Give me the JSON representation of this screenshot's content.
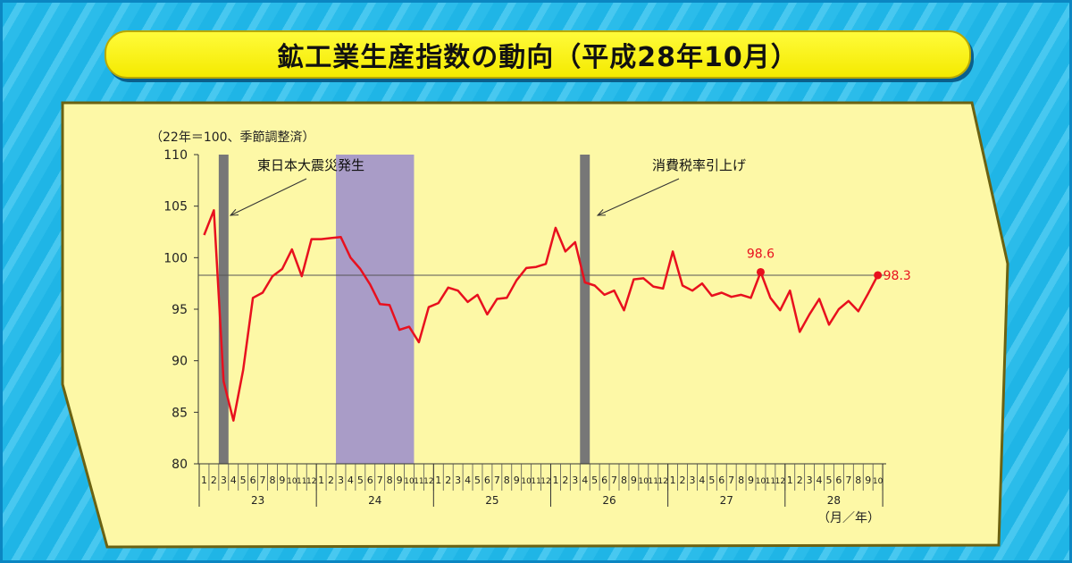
{
  "title": "鉱工業生産指数の動向（平成28年10月）",
  "chart_data": {
    "type": "line",
    "ylabel": "（22年＝100、季節調整済）",
    "xunit": "（月／年）",
    "ylim": [
      80,
      110
    ],
    "yticks": [
      80,
      85,
      90,
      95,
      100,
      105,
      110
    ],
    "reference_line": 98.3,
    "months": [
      "1",
      "2",
      "3",
      "4",
      "5",
      "6",
      "7",
      "8",
      "9",
      "10",
      "11",
      "12",
      "1",
      "2",
      "3",
      "4",
      "5",
      "6",
      "7",
      "8",
      "9",
      "10",
      "11",
      "12",
      "1",
      "2",
      "3",
      "4",
      "5",
      "6",
      "7",
      "8",
      "9",
      "10",
      "11",
      "12",
      "1",
      "2",
      "3",
      "4",
      "5",
      "6",
      "7",
      "8",
      "9",
      "10",
      "11",
      "12",
      "1",
      "2",
      "3",
      "4",
      "5",
      "6",
      "7",
      "8",
      "9",
      "10",
      "11",
      "12",
      "1",
      "2",
      "3",
      "4",
      "5",
      "6",
      "7",
      "8",
      "9",
      "10"
    ],
    "years": [
      {
        "label": "23",
        "start": 0,
        "count": 12
      },
      {
        "label": "24",
        "start": 12,
        "count": 12
      },
      {
        "label": "25",
        "start": 24,
        "count": 12
      },
      {
        "label": "26",
        "start": 36,
        "count": 12
      },
      {
        "label": "27",
        "start": 48,
        "count": 12
      },
      {
        "label": "28",
        "start": 60,
        "count": 10
      }
    ],
    "series": [
      {
        "color": "#e8101e",
        "values": [
          102.2,
          104.6,
          88.0,
          84.2,
          89.1,
          96.1,
          96.6,
          98.2,
          98.9,
          100.8,
          98.2,
          101.8,
          101.8,
          101.9,
          102.0,
          100.0,
          98.9,
          97.4,
          95.5,
          95.4,
          93.0,
          93.3,
          91.8,
          95.2,
          95.6,
          97.1,
          96.8,
          95.7,
          96.4,
          94.5,
          96.0,
          96.1,
          97.8,
          99.0,
          99.1,
          99.4,
          102.9,
          100.6,
          101.5,
          97.6,
          97.3,
          96.4,
          96.8,
          94.9,
          97.9,
          98.0,
          97.2,
          97.0,
          100.6,
          97.3,
          96.8,
          97.5,
          96.3,
          96.6,
          96.2,
          96.4,
          96.1,
          98.6,
          96.1,
          94.9,
          96.8,
          92.8,
          94.5,
          96.0,
          93.5,
          95.0,
          95.8,
          94.8,
          96.5,
          98.3
        ]
      }
    ],
    "callouts": [
      {
        "index": 57,
        "label": "98.6"
      },
      {
        "index": 69,
        "label": "98.3"
      }
    ],
    "shaded_periods": [
      {
        "start": 2,
        "end": 2,
        "color": "#777777"
      },
      {
        "start": 14,
        "end": 21,
        "color": "#a99cc7"
      },
      {
        "start": 39,
        "end": 39,
        "color": "#777777"
      }
    ],
    "annotations": [
      {
        "text": "東日本大震災発生",
        "index": 2
      },
      {
        "text": "消費税率引上げ",
        "index": 39
      }
    ]
  }
}
